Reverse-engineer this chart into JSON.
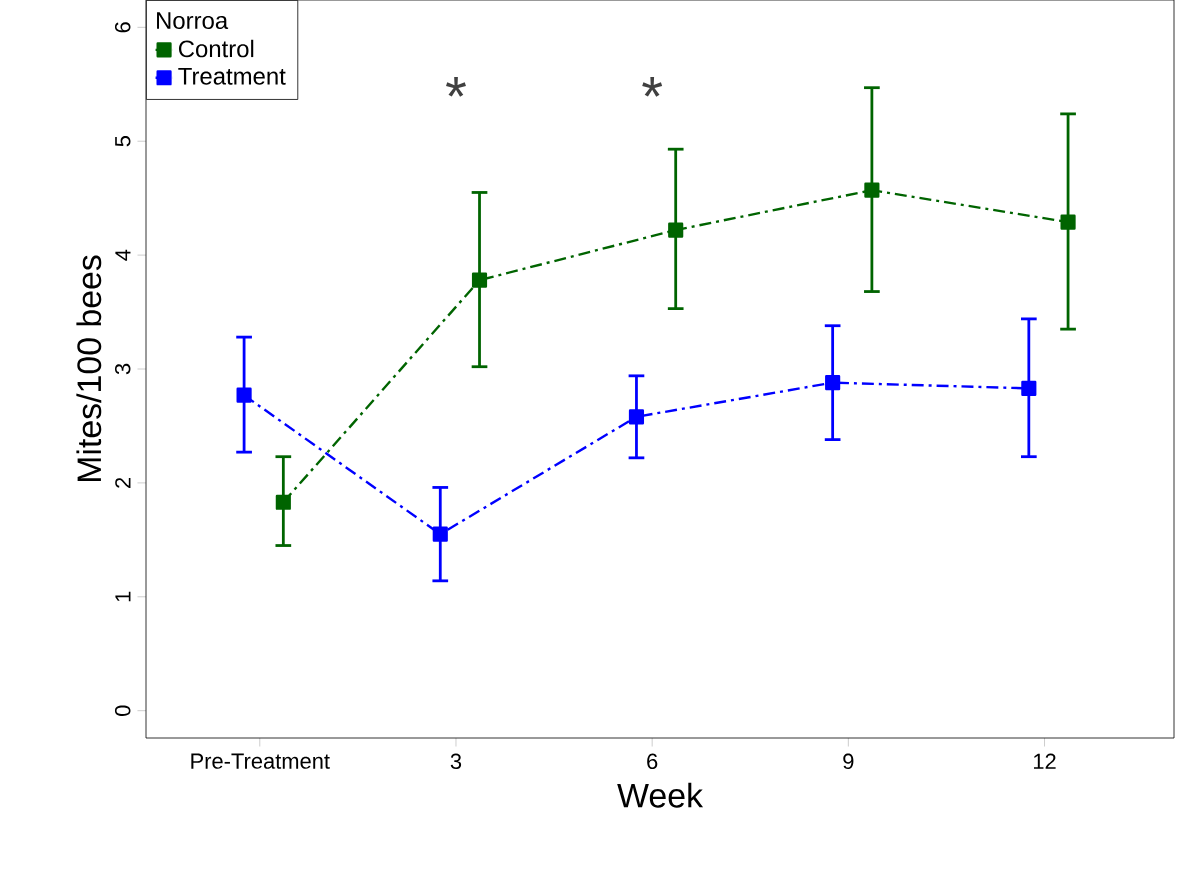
{
  "chart_data": {
    "type": "line",
    "xlabel": "Week",
    "ylabel": "Mites/100 bees",
    "legend_title": "Norroa",
    "categories": [
      "Pre-Treatment",
      "3",
      "6",
      "9",
      "12"
    ],
    "series": [
      {
        "name": "Control",
        "color": "#006400",
        "values": [
          1.83,
          3.78,
          4.22,
          4.57,
          4.29
        ],
        "errors": [
          [
            1.45,
            2.23
          ],
          [
            3.02,
            4.55
          ],
          [
            3.53,
            4.93
          ],
          [
            3.68,
            5.47
          ],
          [
            3.35,
            5.24
          ]
        ]
      },
      {
        "name": "Treatment",
        "color": "#0000ff",
        "values": [
          2.77,
          1.55,
          2.58,
          2.88,
          2.83
        ],
        "errors": [
          [
            2.27,
            3.28
          ],
          [
            1.14,
            1.96
          ],
          [
            2.22,
            2.94
          ],
          [
            2.38,
            3.38
          ],
          [
            2.23,
            3.44
          ]
        ]
      }
    ],
    "ylim": [
      -0.24,
      6.24
    ],
    "yticks": [
      0,
      1,
      2,
      3,
      4,
      5,
      6
    ],
    "annotations": [
      "*",
      "*"
    ],
    "legend": "top left",
    "marker": "square",
    "line_style": "dashed",
    "grid": false
  }
}
